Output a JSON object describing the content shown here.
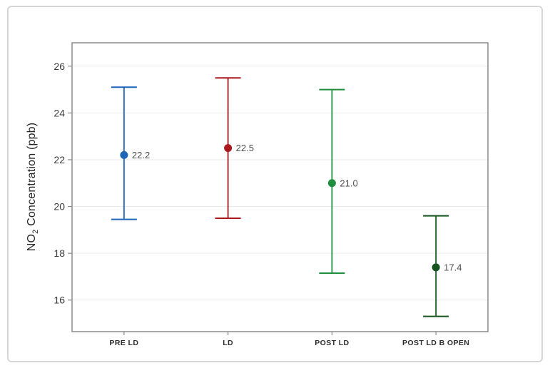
{
  "figure": {
    "background_color": "#ffffff",
    "frame_border_color": "#d7d7d7"
  },
  "chart_data": {
    "type": "interval_plot",
    "title": "",
    "xlabel": "",
    "ylabel_prefix": "NO",
    "ylabel_sub": "2",
    "ylabel_suffix": " Concentration (ppb)",
    "categories": [
      "PRE LD",
      "LD",
      "POST LD",
      "POST LD B OPEN"
    ],
    "series": [
      {
        "category": "PRE LD",
        "mean": 22.2,
        "ci_low": 19.45,
        "ci_high": 25.1,
        "value_label": "22.2",
        "color": "#1f65b7"
      },
      {
        "category": "LD",
        "mean": 22.5,
        "ci_low": 19.5,
        "ci_high": 25.5,
        "value_label": "22.5",
        "color": "#a9191e"
      },
      {
        "category": "POST LD",
        "mean": 21.0,
        "ci_low": 17.15,
        "ci_high": 25.0,
        "value_label": "21.0",
        "color": "#1f8e3e"
      },
      {
        "category": "POST LD B OPEN",
        "mean": 17.4,
        "ci_low": 15.3,
        "ci_high": 19.6,
        "value_label": "17.4",
        "color": "#14551f"
      }
    ],
    "yticks": [
      16,
      18,
      20,
      22,
      24,
      26
    ],
    "ylim": [
      14.65,
      27.0
    ],
    "grid": "horizontal",
    "legend": "none",
    "colors": {
      "grid_line": "#ebebeb",
      "plot_border": "#8a8a8a",
      "y_tick_label": "#3b3b3b",
      "x_tick_label": "#2e2e2e",
      "value_label": "#4e4e4e",
      "axis_title": "#262626"
    }
  }
}
